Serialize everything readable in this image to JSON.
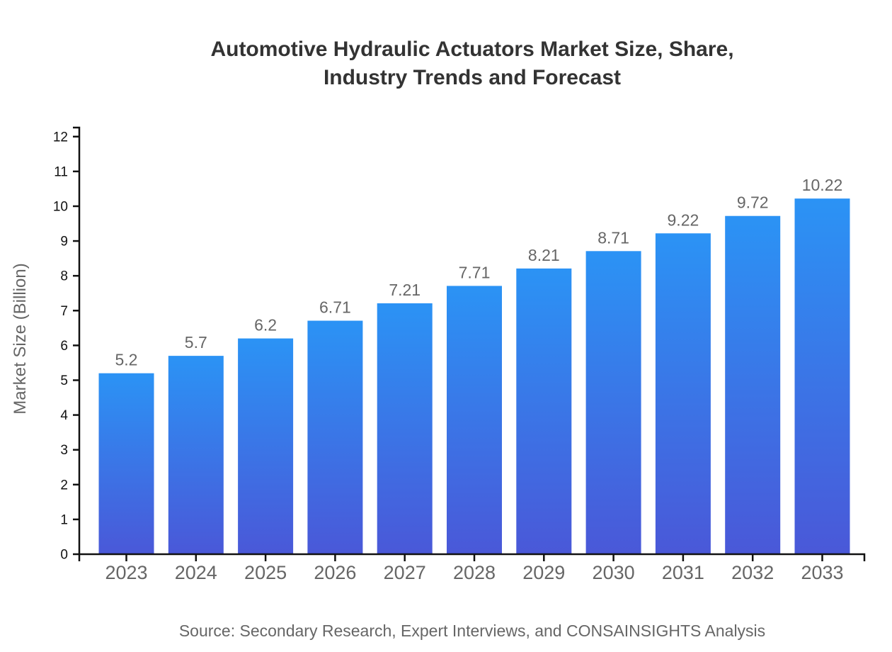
{
  "title": {
    "line1": "Automotive Hydraulic Actuators Market Size, Share,",
    "line2": "Industry Trends and Forecast"
  },
  "source": {
    "text": "Source: Secondary Research, Expert Interviews, and CONSAINSIGHTS Analysis"
  },
  "chart_data": {
    "type": "bar",
    "title": "Automotive Hydraulic Actuators Market Size, Share, Industry Trends and Forecast",
    "categories": [
      "2023",
      "2024",
      "2025",
      "2026",
      "2027",
      "2028",
      "2029",
      "2030",
      "2031",
      "2032",
      "2033"
    ],
    "values": [
      5.2,
      5.7,
      6.2,
      6.71,
      7.21,
      7.71,
      8.21,
      8.71,
      9.22,
      9.72,
      10.22
    ],
    "value_labels": [
      "5.2",
      "5.7",
      "6.2",
      "6.71",
      "7.21",
      "7.71",
      "8.21",
      "8.71",
      "9.22",
      "9.72",
      "10.22"
    ],
    "xlabel": "",
    "ylabel": "Market Size (Billion)",
    "ylim": [
      0,
      12.26
    ],
    "yticks": [
      0,
      1,
      2,
      3,
      4,
      5,
      6,
      7,
      8,
      9,
      10,
      11,
      12
    ],
    "grid": false,
    "legend": null,
    "colors": {
      "bar_top": "#2B93F5",
      "bar_bottom": "#4A58D8",
      "axis": "#111111",
      "tick_label": "#111111",
      "category_label": "#666666",
      "value_label": "#666666",
      "title": "#333333",
      "muted_text": "#666666"
    }
  }
}
